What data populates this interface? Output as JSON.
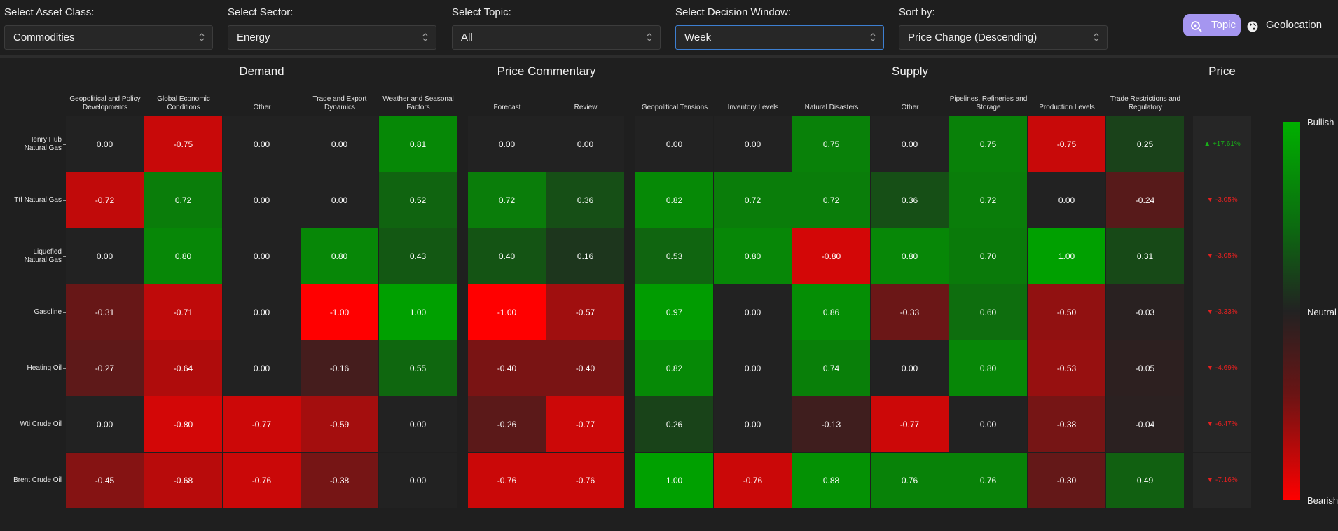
{
  "filters": [
    {
      "label": "Select Asset Class:",
      "value": "Commodities"
    },
    {
      "label": "Select Sector:",
      "value": "Energy"
    },
    {
      "label": "Select Topic:",
      "value": "All"
    },
    {
      "label": "Select Decision Window:",
      "value": "Week"
    },
    {
      "label": "Sort by:",
      "value": "Price Change (Descending)"
    }
  ],
  "view_toggle": {
    "topic_label": "Topic",
    "geolocation_label": "Geolocation",
    "active": "Topic"
  },
  "groups": [
    {
      "title": "Demand",
      "columns": [
        "Geopolitical and Policy Developments",
        "Global Economic Conditions",
        "Other",
        "Trade and Export Dynamics",
        "Weather and Seasonal Factors"
      ]
    },
    {
      "title": "Price Commentary",
      "columns": [
        "Forecast",
        "Review"
      ]
    },
    {
      "title": "Supply",
      "columns": [
        "Geopolitical Tensions",
        "Inventory Levels",
        "Natural Disasters",
        "Other",
        "Pipelines, Refineries and Storage",
        "Production Levels",
        "Trade Restrictions and Regulatory"
      ]
    }
  ],
  "price_title": "Price",
  "rows": [
    {
      "name": "Henry Hub Natural Gas",
      "values": [
        "0.00",
        "-0.75",
        "0.00",
        "0.00",
        "0.81",
        "0.00",
        "0.00",
        "0.00",
        "0.00",
        "0.75",
        "0.00",
        "0.75",
        "-0.75",
        "0.25"
      ],
      "price": "▲ +17.61%",
      "dir": "up"
    },
    {
      "name": "Ttf Natural Gas",
      "values": [
        "-0.72",
        "0.72",
        "0.00",
        "0.00",
        "0.52",
        "0.72",
        "0.36",
        "0.82",
        "0.72",
        "0.72",
        "0.36",
        "0.72",
        "0.00",
        "-0.24"
      ],
      "price": "▼ -3.05%",
      "dir": "down"
    },
    {
      "name": "Liquefied Natural Gas",
      "values": [
        "0.00",
        "0.80",
        "0.00",
        "0.80",
        "0.43",
        "0.40",
        "0.16",
        "0.53",
        "0.80",
        "-0.80",
        "0.80",
        "0.70",
        "1.00",
        "0.31"
      ],
      "price": "▼ -3.05%",
      "dir": "down"
    },
    {
      "name": "Gasoline",
      "values": [
        "-0.31",
        "-0.71",
        "0.00",
        "-1.00",
        "1.00",
        "-1.00",
        "-0.57",
        "0.97",
        "0.00",
        "0.86",
        "-0.33",
        "0.60",
        "-0.50",
        "-0.03"
      ],
      "price": "▼ -3.33%",
      "dir": "down"
    },
    {
      "name": "Heating Oil",
      "values": [
        "-0.27",
        "-0.64",
        "0.00",
        "-0.16",
        "0.55",
        "-0.40",
        "-0.40",
        "0.82",
        "0.00",
        "0.74",
        "0.00",
        "0.80",
        "-0.53",
        "-0.05"
      ],
      "price": "▼ -4.69%",
      "dir": "down"
    },
    {
      "name": "Wti Crude Oil",
      "values": [
        "0.00",
        "-0.80",
        "-0.77",
        "-0.59",
        "0.00",
        "-0.26",
        "-0.77",
        "0.26",
        "0.00",
        "-0.13",
        "-0.77",
        "0.00",
        "-0.38",
        "-0.04"
      ],
      "price": "▼ -6.47%",
      "dir": "down"
    },
    {
      "name": "Brent Crude Oil",
      "values": [
        "-0.45",
        "-0.68",
        "-0.76",
        "-0.38",
        "0.00",
        "-0.76",
        "-0.76",
        "1.00",
        "-0.76",
        "0.88",
        "0.76",
        "0.76",
        "-0.30",
        "0.49"
      ],
      "price": "▼ -7.16%",
      "dir": "down"
    }
  ],
  "legend": {
    "top": "Bullish",
    "middle": "Neutral",
    "bottom": "Bearish"
  },
  "colors": {
    "bullish": "#00a000",
    "neutral": "#222222",
    "bearish": "#ff0000",
    "accent": "#a596f0",
    "price_up": "#19b019",
    "price_down": "#e62020"
  }
}
